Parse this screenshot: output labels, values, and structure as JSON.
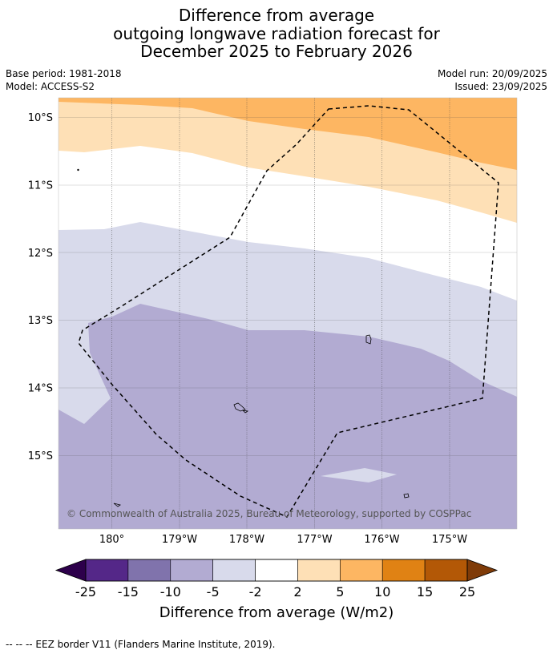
{
  "title": {
    "line1": "Difference from average",
    "line2": "outgoing longwave radiation forecast for",
    "line3": "December 2025 to February 2026"
  },
  "meta": {
    "base_period": "Base period: 1981-2018",
    "model": "Model: ACCESS-S2",
    "model_run": "Model run: 20/09/2025",
    "issued": "Issued: 23/09/2025"
  },
  "map": {
    "lat_labels": [
      "10°S",
      "11°S",
      "12°S",
      "13°S",
      "14°S",
      "15°S"
    ],
    "lon_labels": [
      "180°",
      "179°W",
      "178°W",
      "177°W",
      "176°W",
      "175°W"
    ],
    "copyright": "© Commonwealth of Australia 2025, Bureau of Meteorology, supported by COSPPac",
    "region_colors": {
      "plus_5_to_10": "#fdb662",
      "plus_2_to_5": "#fee0b6",
      "neutral": "#ffffff",
      "minus_2_to_5": "#d8daeb",
      "minus_5_to_10": "#b2abd2"
    }
  },
  "colorbar": {
    "ticks": [
      "-25",
      "-15",
      "-10",
      "-5",
      "-2",
      "2",
      "5",
      "10",
      "15",
      "25"
    ],
    "colors": [
      "#542788",
      "#8073ac",
      "#b2abd2",
      "#d8daeb",
      "#ffffff",
      "#fee0b6",
      "#fdb662",
      "#e08214",
      "#b35806"
    ],
    "under_color": "#2d004b",
    "over_color": "#7f3b08",
    "label": "Difference from average (W/m2)"
  },
  "legend_note": "--  --  -- EEZ border V11 (Flanders Marine Institute, 2019)."
}
